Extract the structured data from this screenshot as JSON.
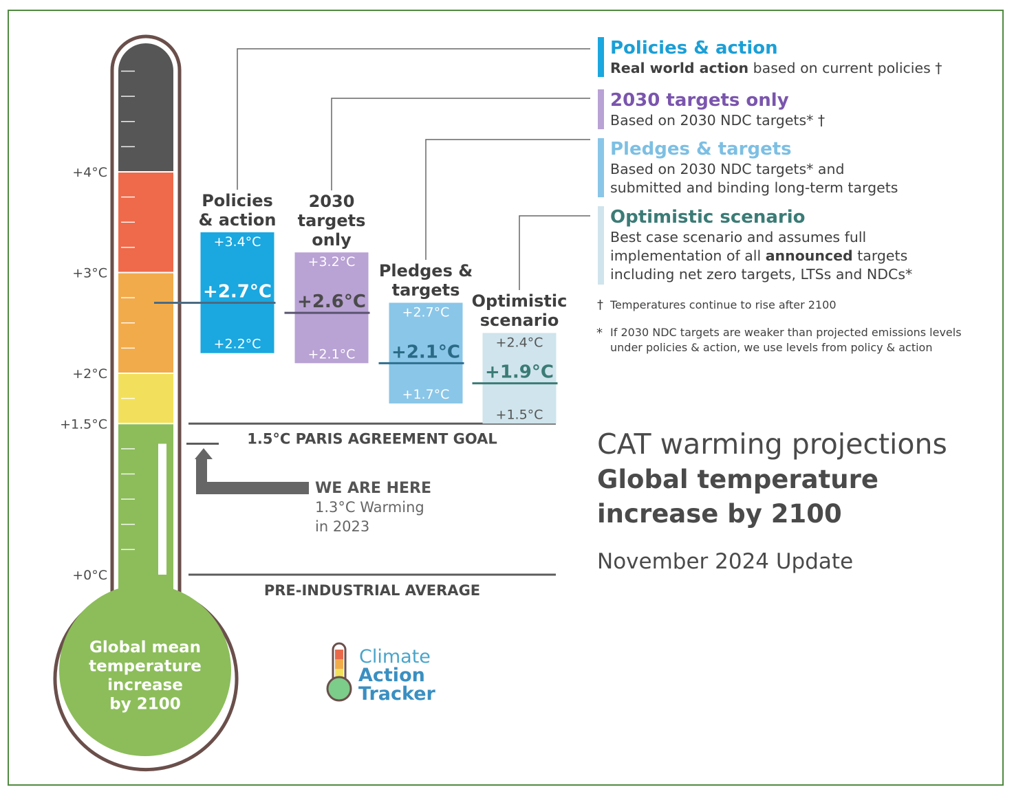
{
  "chart_data": {
    "type": "range-bar",
    "axis": {
      "ticks": [
        {
          "value": 4,
          "label": "+4°C"
        },
        {
          "value": 3,
          "label": "+3°C"
        },
        {
          "value": 2,
          "label": "+2°C"
        },
        {
          "value": 1.5,
          "label": "+1.5°C"
        },
        {
          "value": 0,
          "label": "+0°C"
        }
      ],
      "ylim": [
        0,
        5.5
      ]
    },
    "bands": [
      {
        "from": 0,
        "to": 1.5,
        "color": "#8cbd5a"
      },
      {
        "from": 1.5,
        "to": 2,
        "color": "#f2e05c"
      },
      {
        "from": 2,
        "to": 3,
        "color": "#f2ab4a"
      },
      {
        "from": 3,
        "to": 4,
        "color": "#ee6a4a"
      },
      {
        "from": 4,
        "to": 5.5,
        "color": "#575656"
      }
    ],
    "bulb_label": [
      "Global mean",
      "temperature",
      "increase",
      "by 2100"
    ],
    "current_warming": 1.3,
    "series": [
      {
        "name_lines": [
          "Policies",
          "& action"
        ],
        "low": 2.2,
        "mid": 2.7,
        "high": 3.4,
        "low_label": "+2.2°C",
        "mid_label": "+2.7°C",
        "high_label": "+3.4°C",
        "color": "#1ba7df",
        "line_color": "#4a6a82",
        "mid_text_color": "#ffffff",
        "range_text_color": "#ffffff"
      },
      {
        "name_lines": [
          "2030",
          "targets",
          "only"
        ],
        "low": 2.1,
        "mid": 2.6,
        "high": 3.2,
        "low_label": "+2.1°C",
        "mid_label": "+2.6°C",
        "high_label": "+3.2°C",
        "color": "#b9a2d4",
        "line_color": "#5a5470",
        "mid_text_color": "#4a4a4a",
        "range_text_color": "#ffffff"
      },
      {
        "name_lines": [
          "Pledges &",
          "targets"
        ],
        "low": 1.7,
        "mid": 2.1,
        "high": 2.7,
        "low_label": "+1.7°C",
        "mid_label": "+2.1°C",
        "high_label": "+2.7°C",
        "color": "#8ac6e8",
        "line_color": "#2e6f8e",
        "mid_text_color": "#2a6a86",
        "range_text_color": "#ffffff"
      },
      {
        "name_lines": [
          "Optimistic",
          "scenario"
        ],
        "low": 1.5,
        "mid": 1.9,
        "high": 2.4,
        "low_label": "+1.5°C",
        "mid_label": "+1.9°C",
        "high_label": "+2.4°C",
        "color": "#cfe4ec",
        "line_color": "#3b7b76",
        "mid_text_color": "#3b7b76",
        "range_text_color": "#555555"
      }
    ]
  },
  "reference_lines": {
    "paris": "1.5°C PARIS AGREEMENT GOAL",
    "preindustrial": "PRE-INDUSTRIAL AVERAGE"
  },
  "we_are_here": {
    "title": "WE ARE HERE",
    "line1": "1.3°C Warming",
    "line2": "in 2023"
  },
  "legend": [
    {
      "title": "Policies & action",
      "color": "#1ba7df",
      "title_color": "#1b9fd6",
      "desc": [
        [
          {
            "b": "Real world action"
          },
          {
            "t": " based on current policies †"
          }
        ]
      ]
    },
    {
      "title": "2030 targets only",
      "color": "#b9a2d4",
      "title_color": "#7a55ad",
      "desc": [
        [
          {
            "t": "Based on 2030 NDC targets* †"
          }
        ]
      ]
    },
    {
      "title": "Pledges & targets",
      "color": "#8ac6e8",
      "title_color": "#7dbfe3",
      "desc": [
        [
          {
            "t": "Based on 2030 NDC targets* and"
          }
        ],
        [
          {
            "t": "submitted and binding long-term targets"
          }
        ]
      ]
    },
    {
      "title": "Optimistic scenario",
      "color": "#cfe4ec",
      "title_color": "#3b7b76",
      "desc": [
        [
          {
            "t": "Best case scenario and assumes full"
          }
        ],
        [
          {
            "t": "implementation of all "
          },
          {
            "b": "announced"
          },
          {
            "t": " targets"
          }
        ],
        [
          {
            "t": "including net zero targets, LTSs and NDCs*"
          }
        ]
      ]
    }
  ],
  "notes": {
    "dagger_symbol": "†",
    "dagger_text": "Temperatures continue to rise after 2100",
    "star_symbol": "*",
    "star_line1": "If 2030 NDC targets are weaker than projected emissions levels",
    "star_line2": "under policies & action, we use levels from policy & action"
  },
  "heading": {
    "line1": "CAT warming projections",
    "line2": "Global temperature",
    "line3": "increase by 2100",
    "update": "November 2024 Update"
  },
  "logo": {
    "word1": "Climate",
    "word2": "Action",
    "word3": "Tracker"
  }
}
